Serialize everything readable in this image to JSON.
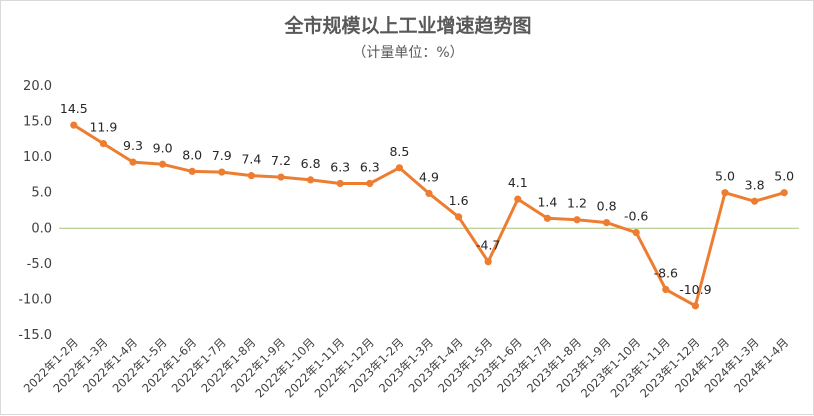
{
  "chart_data": {
    "type": "line",
    "title": "全市规模以上工业增速趋势图",
    "subtitle": "（计量单位：%）",
    "categories": [
      "2022年1-2月",
      "2022年1-3月",
      "2022年1-4月",
      "2022年1-5月",
      "2022年1-6月",
      "2022年1-7月",
      "2022年1-8月",
      "2022年1-9月",
      "2022年1-10月",
      "2022年1-11月",
      "2022年1-12月",
      "2023年1-2月",
      "2023年1-3月",
      "2023年1-4月",
      "2023年1-5月",
      "2023年1-6月",
      "2023年1-7月",
      "2023年1-8月",
      "2023年1-9月",
      "2023年1-10月",
      "2023年1-11月",
      "2023年1-12月",
      "2024年1-2月",
      "2024年1-3月",
      "2024年1-4月"
    ],
    "values": [
      14.5,
      11.9,
      9.3,
      9.0,
      8.0,
      7.9,
      7.4,
      7.2,
      6.8,
      6.3,
      6.3,
      8.5,
      4.9,
      1.6,
      -4.7,
      4.1,
      1.4,
      1.2,
      0.8,
      -0.6,
      -8.6,
      -10.9,
      5.0,
      3.8,
      5.0
    ],
    "data_labels": [
      "14.5",
      "11.9",
      "9.3",
      "9.0",
      "8.0",
      "7.9",
      "7.4",
      "7.2",
      "6.8",
      "6.3",
      "6.3",
      "8.5",
      "4.9",
      "1.6",
      "-4.7",
      "4.1",
      "1.4",
      "1.2",
      "0.8",
      "-0.6",
      "-8.6",
      "-10.9",
      "5.0",
      "3.8",
      "5.0"
    ],
    "y_ticks": [
      "20.0",
      "15.0",
      "10.0",
      "5.0",
      "0.0",
      "-5.0",
      "-10.0",
      "-15.0"
    ],
    "ylim": [
      -15,
      20
    ],
    "grid": false,
    "legend": "none",
    "colors": {
      "line": "#ED7D31",
      "zero_line": "#A9C47F"
    }
  }
}
